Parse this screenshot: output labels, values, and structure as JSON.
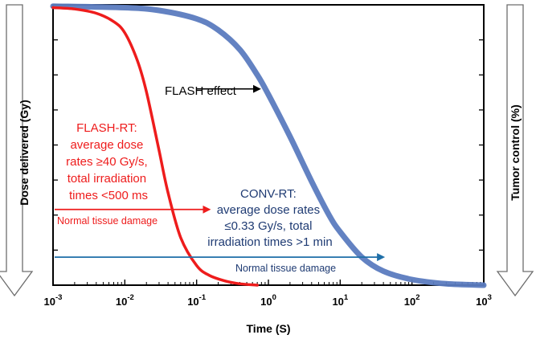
{
  "chart_data": {
    "type": "line",
    "x_scale": "log",
    "xlim": [
      0.001,
      1000
    ],
    "x_ticks": [
      0.001,
      0.01,
      0.1,
      1,
      10,
      100,
      1000
    ],
    "x_tick_labels": [
      {
        "base": "10",
        "exp": "-3"
      },
      {
        "base": "10",
        "exp": "-2"
      },
      {
        "base": "10",
        "exp": "-1"
      },
      {
        "base": "10",
        "exp": "0"
      },
      {
        "base": "10",
        "exp": "1"
      },
      {
        "base": "10",
        "exp": "2"
      },
      {
        "base": "10",
        "exp": "3"
      }
    ],
    "xlabel": "Time (S)",
    "ylabel_left": "Dose delivered (Gy)",
    "ylabel_right": "Tumor control (%)",
    "ylim": [
      0,
      1
    ],
    "y_tick_count": 8,
    "grid": false,
    "series": [
      {
        "color": "#ee1c1c",
        "points": [
          [
            0.001,
            0.99
          ],
          [
            0.002,
            0.985
          ],
          [
            0.004,
            0.97
          ],
          [
            0.007,
            0.94
          ],
          [
            0.01,
            0.9
          ],
          [
            0.015,
            0.8
          ],
          [
            0.02,
            0.69
          ],
          [
            0.03,
            0.48
          ],
          [
            0.04,
            0.33
          ],
          [
            0.06,
            0.17
          ],
          [
            0.1,
            0.07
          ],
          [
            0.15,
            0.035
          ],
          [
            0.25,
            0.015
          ],
          [
            0.4,
            0.005
          ],
          [
            0.7,
            0.0
          ]
        ]
      },
      {
        "color": "#5b7bbf",
        "points": [
          [
            0.001,
            0.995
          ],
          [
            0.01,
            0.99
          ],
          [
            0.03,
            0.98
          ],
          [
            0.1,
            0.95
          ],
          [
            0.2,
            0.91
          ],
          [
            0.4,
            0.84
          ],
          [
            0.7,
            0.75
          ],
          [
            1,
            0.68
          ],
          [
            2,
            0.53
          ],
          [
            4,
            0.37
          ],
          [
            7,
            0.25
          ],
          [
            10,
            0.19
          ],
          [
            20,
            0.1
          ],
          [
            40,
            0.05
          ],
          [
            100,
            0.02
          ],
          [
            300,
            0.005
          ],
          [
            1000,
            0.0
          ]
        ]
      }
    ],
    "annotations": {
      "flash_effect": {
        "text": "FLASH effect",
        "color": "#000000",
        "arrow_from_x": 0.1,
        "arrow_to_x": 0.75,
        "y": 0.7
      },
      "flash_rt": {
        "lines": [
          "FLASH-RT:",
          "average dose",
          "rates ≥40 Gy/s,",
          "total irradiation",
          "times <500 ms"
        ],
        "color": "#ee1c1c"
      },
      "conv_rt": {
        "lines": [
          "CONV-RT:",
          "average dose rates",
          "≤0.33 Gy/s, total",
          "irradiation times >1 min"
        ],
        "color": "#1f3b73"
      },
      "normal_tissue_flash": {
        "text": "Normal tissue damage",
        "color": "#ee1c1c",
        "arrow_to_x": 0.15,
        "y": 0.27
      },
      "normal_tissue_conv": {
        "text": "Normal tissue damage",
        "color": "#1f6fa8",
        "arrow_to_x": 40,
        "y": 0.1
      }
    }
  }
}
